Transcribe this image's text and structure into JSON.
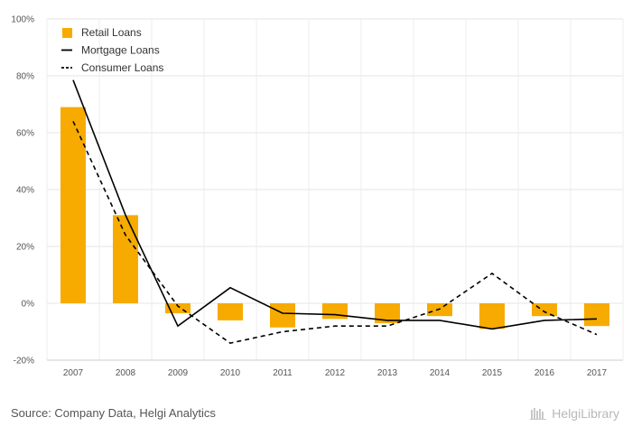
{
  "chart_data": {
    "type": "bar",
    "categories": [
      "2007",
      "2008",
      "2009",
      "2010",
      "2011",
      "2012",
      "2013",
      "2014",
      "2015",
      "2016",
      "2017"
    ],
    "series": [
      {
        "name": "Retail Loans",
        "type": "bar",
        "color": "#f7ab00",
        "values": [
          69,
          31,
          -3.5,
          -6,
          -8.5,
          -5.5,
          -7,
          -4.5,
          -9,
          -4.5,
          -8
        ]
      },
      {
        "name": "Mortgage Loans",
        "type": "line",
        "style": "solid",
        "color": "#000000",
        "values": [
          78.5,
          31,
          -8,
          5.5,
          -3.5,
          -4,
          -6,
          -6,
          -9,
          -6,
          -5.5
        ]
      },
      {
        "name": "Consumer Loans",
        "type": "line",
        "style": "dashed",
        "color": "#000000",
        "values": [
          64,
          24,
          -1,
          -14,
          -10,
          -8,
          -8,
          -2,
          10.5,
          -3,
          -11
        ]
      }
    ],
    "yticks": [
      "100%",
      "80%",
      "60%",
      "40%",
      "20%",
      "0%",
      "-20%"
    ],
    "ylim": [
      -20,
      100
    ],
    "grid": true,
    "legend_position": "top-left"
  },
  "footer": {
    "source": "Source: Company Data, Helgi Analytics",
    "logo_text": "HelgiLibrary"
  }
}
